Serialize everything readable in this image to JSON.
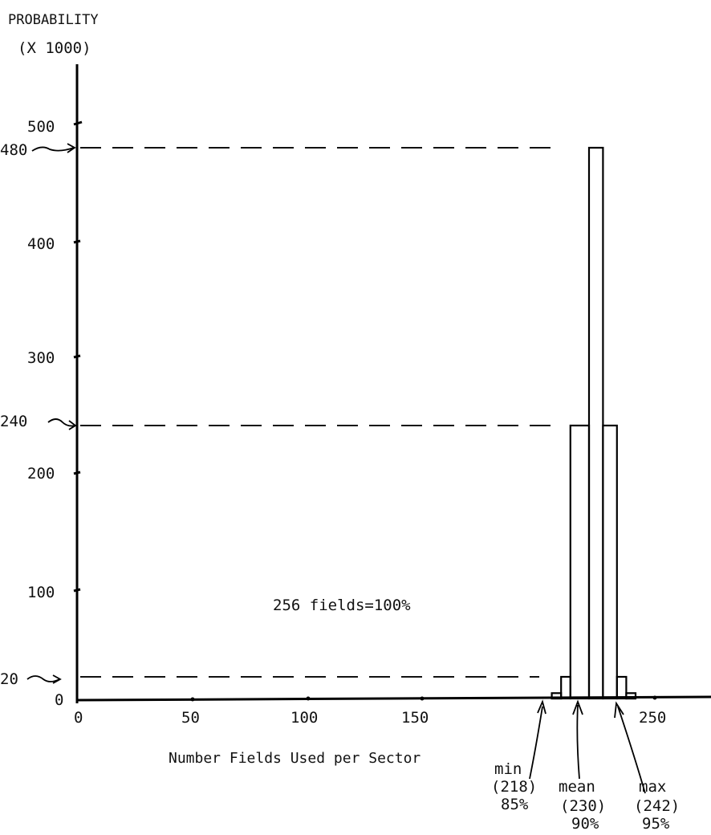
{
  "chart_data": {
    "type": "bar",
    "ylabel_line1": "PROBABILITY",
    "ylabel_line2": "(X 1000)",
    "xlabel": "Number Fields Used per Sector",
    "note": "256 fields=100%",
    "xlim": [
      0,
      280
    ],
    "ylim": [
      0,
      500
    ],
    "x_ticks": [
      "0",
      "50",
      "100",
      "150",
      "250"
    ],
    "y_ticks": [
      "0",
      "100",
      "200",
      "300",
      "400",
      "500"
    ],
    "y_marked_levels": [
      "20",
      "240",
      "480"
    ],
    "bins": [
      {
        "x0": 204,
        "x1": 208,
        "value": 5
      },
      {
        "x0": 208,
        "x1": 212,
        "value": 20
      },
      {
        "x0": 212,
        "x1": 220,
        "value": 240
      },
      {
        "x0": 220,
        "x1": 226,
        "value": 480
      },
      {
        "x0": 226,
        "x1": 232,
        "value": 240
      },
      {
        "x0": 232,
        "x1": 236,
        "value": 20
      },
      {
        "x0": 236,
        "x1": 240,
        "value": 5
      }
    ],
    "annotations": [
      {
        "label": "min",
        "line2": "(218)",
        "line3": "85%"
      },
      {
        "label": "mean",
        "line2": "(230)",
        "line3": "90%"
      },
      {
        "label": "max",
        "line2": "(242)",
        "line3": "95%"
      }
    ]
  }
}
